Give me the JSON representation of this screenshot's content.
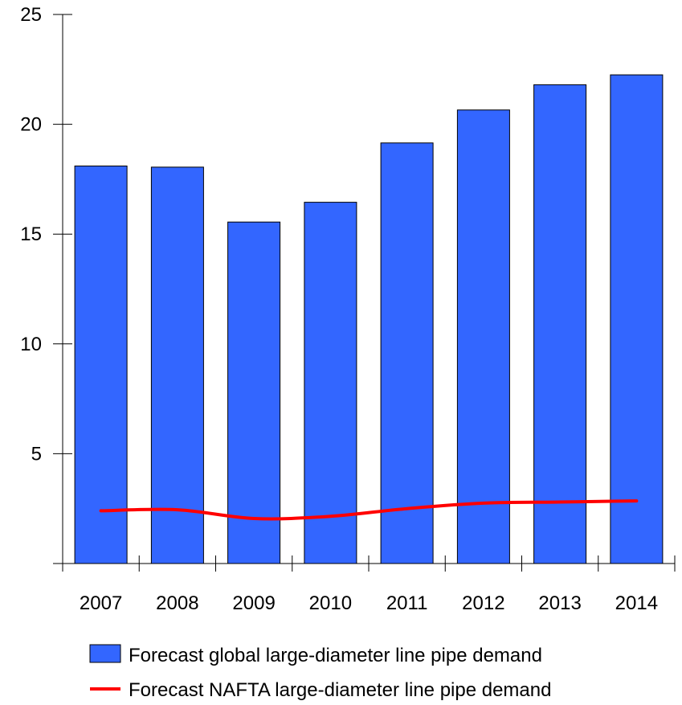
{
  "chart_data": {
    "type": "bar",
    "categories": [
      "2007",
      "2008",
      "2009",
      "2010",
      "2011",
      "2012",
      "2013",
      "2014"
    ],
    "series": [
      {
        "name": "Forecast global large-diameter line pipe demand",
        "type": "bar",
        "color": "#3366ff",
        "values": [
          18.1,
          18.05,
          15.55,
          16.45,
          19.15,
          20.65,
          21.8,
          22.25
        ]
      },
      {
        "name": "Forecast NAFTA large-diameter line pipe demand",
        "type": "line",
        "color": "#ff0000",
        "values": [
          2.4,
          2.45,
          2.05,
          2.15,
          2.5,
          2.75,
          2.8,
          2.85
        ]
      }
    ],
    "y_ticks": [
      "5",
      "10",
      "15",
      "20",
      "25"
    ],
    "ylim": [
      0,
      25
    ],
    "title": "",
    "xlabel": "",
    "ylabel": "",
    "grid": false,
    "legend_position": "bottom"
  }
}
